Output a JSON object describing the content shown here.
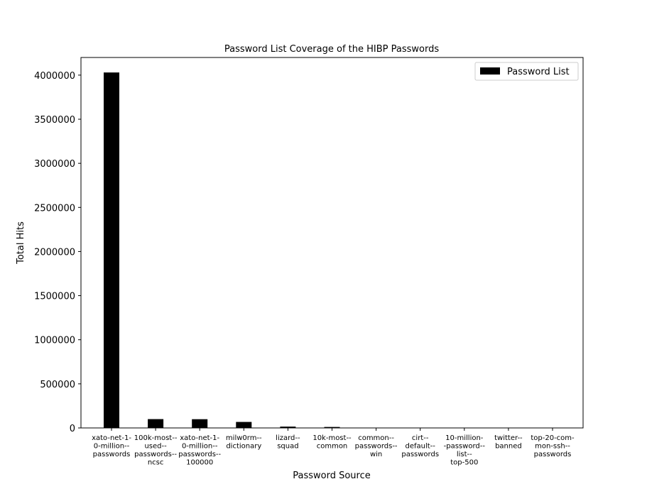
{
  "chart_data": {
    "type": "bar",
    "title": "Password List Coverage of the HIBP Passwords",
    "xlabel": "Password Source",
    "ylabel": "Total Hits",
    "ylim": [
      0,
      4200000
    ],
    "yticks": [
      0,
      500000,
      1000000,
      1500000,
      2000000,
      2500000,
      3000000,
      3500000,
      4000000
    ],
    "ytick_labels": [
      "0",
      "500000",
      "1000000",
      "1500000",
      "2000000",
      "2500000",
      "3000000",
      "3500000",
      "4000000"
    ],
    "categories": [
      "xato-net-1-\n0-million--\npasswords",
      "100k-most--\nused--\npasswords--\nncsc",
      "xato-net-1-\n0-million--\npasswords--\n100000",
      "milw0rm--\ndictionary",
      "lizard--\nsquad",
      "10k-most--\ncommon",
      "common--\npasswords--\nwin",
      "cirt--\ndefault--\npasswords",
      "10-million-\n-password--\nlist--\ntop-500",
      "twitter--\nbanned",
      "top-20-com-\nmon-ssh--\npasswords"
    ],
    "series": [
      {
        "name": "Password List",
        "color": "#000000",
        "values": [
          4030000,
          100000,
          99000,
          68000,
          15000,
          11000,
          4000,
          2000,
          1500,
          1000,
          300
        ]
      }
    ],
    "legend": {
      "placement": "top-right",
      "entries": [
        "Password List"
      ]
    },
    "grid": false
  }
}
